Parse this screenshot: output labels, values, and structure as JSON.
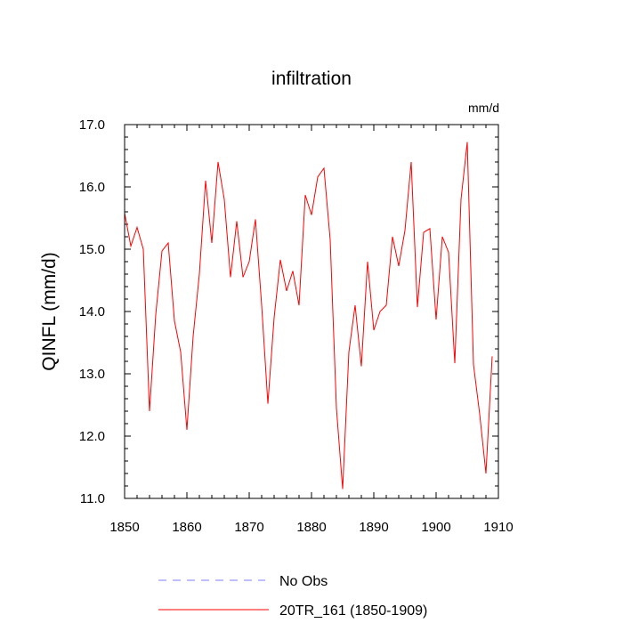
{
  "chart_data": {
    "type": "line",
    "title": "infiltration",
    "units_label": "mm/d",
    "ylabel": "QINFL  (mm/d)",
    "xlabel": "",
    "xlim": [
      1850,
      1910
    ],
    "ylim": [
      11.0,
      17.0
    ],
    "x_ticks": [
      1850,
      1860,
      1870,
      1880,
      1890,
      1900,
      1910
    ],
    "y_ticks": [
      11.0,
      12.0,
      13.0,
      14.0,
      15.0,
      16.0,
      17.0
    ],
    "y_tick_labels": [
      "11.0",
      "12.0",
      "13.0",
      "14.0",
      "15.0",
      "16.0",
      "17.0"
    ],
    "grid": false,
    "legend_position": "bottom",
    "series": [
      {
        "name": "20TR_161 (1850-1909)",
        "color": "#ff0000",
        "style": "solid",
        "x": [
          1850,
          1851,
          1852,
          1853,
          1854,
          1855,
          1856,
          1857,
          1858,
          1859,
          1860,
          1861,
          1862,
          1863,
          1864,
          1865,
          1866,
          1867,
          1868,
          1869,
          1870,
          1871,
          1872,
          1873,
          1874,
          1875,
          1876,
          1877,
          1878,
          1879,
          1880,
          1881,
          1882,
          1883,
          1884,
          1885,
          1886,
          1887,
          1888,
          1889,
          1890,
          1891,
          1892,
          1893,
          1894,
          1895,
          1896,
          1897,
          1898,
          1899,
          1900,
          1901,
          1902,
          1903,
          1904,
          1905,
          1906,
          1907,
          1908,
          1909
        ],
        "values": [
          15.58,
          15.05,
          15.35,
          15.0,
          12.4,
          13.95,
          14.97,
          15.1,
          13.85,
          13.35,
          12.1,
          13.6,
          14.6,
          16.1,
          15.1,
          16.4,
          15.8,
          14.55,
          15.45,
          14.55,
          14.8,
          15.48,
          14.1,
          12.52,
          13.9,
          14.83,
          14.33,
          14.65,
          14.1,
          15.87,
          15.55,
          16.16,
          16.3,
          15.15,
          12.45,
          11.15,
          13.35,
          14.1,
          13.12,
          14.8,
          13.7,
          14.0,
          14.1,
          15.2,
          14.73,
          15.3,
          16.4,
          14.07,
          15.27,
          15.33,
          13.87,
          15.2,
          14.95,
          13.17,
          15.8,
          16.72,
          13.15,
          12.35,
          11.4,
          13.28
        ]
      },
      {
        "name": "No Obs",
        "color": "#7f7fff",
        "style": "dashed",
        "x": [],
        "values": []
      }
    ]
  }
}
